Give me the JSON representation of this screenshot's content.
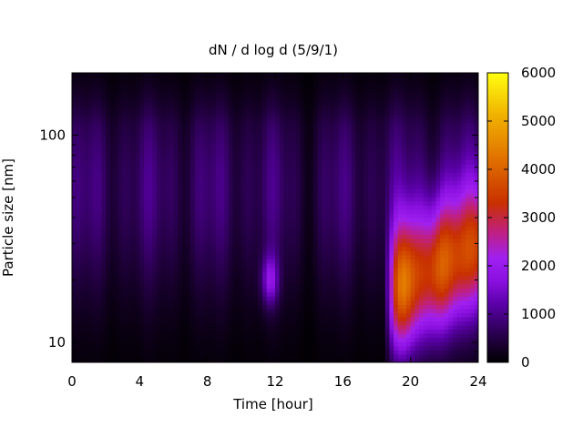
{
  "chart_data": {
    "type": "heatmap",
    "title": "dN / d log d (5/9/1)",
    "xlabel": "Time [hour]",
    "ylabel": "Particle size [nm]",
    "xlim": [
      0,
      24
    ],
    "ylim_nm": [
      8,
      200
    ],
    "y_scale": "log",
    "x_ticks": [
      0,
      4,
      8,
      12,
      16,
      20,
      24
    ],
    "y_ticks": [
      10,
      100
    ],
    "colorbar": {
      "range": [
        0,
        6000
      ],
      "ticks": [
        0,
        1000,
        2000,
        3000,
        4000,
        5000,
        6000
      ],
      "colormap": "gnuplot (black-purple-red-orange-yellow)"
    },
    "description_values": {
      "background_level": 900,
      "mode_size_nm": 100,
      "event_start_hour": 19,
      "event_peak_value": 4600,
      "event_size_range_nm": [
        12,
        60
      ]
    }
  },
  "text": {
    "title": "dN / d log d (5/9/1)",
    "xlabel": "Time [hour]",
    "ylabel": "Particle size [nm]",
    "xticks": [
      "0",
      "4",
      "8",
      "12",
      "16",
      "20",
      "24"
    ],
    "yticks": [
      "10",
      "100"
    ],
    "cticks": [
      "0",
      "1000",
      "2000",
      "3000",
      "4000",
      "5000",
      "6000"
    ]
  }
}
